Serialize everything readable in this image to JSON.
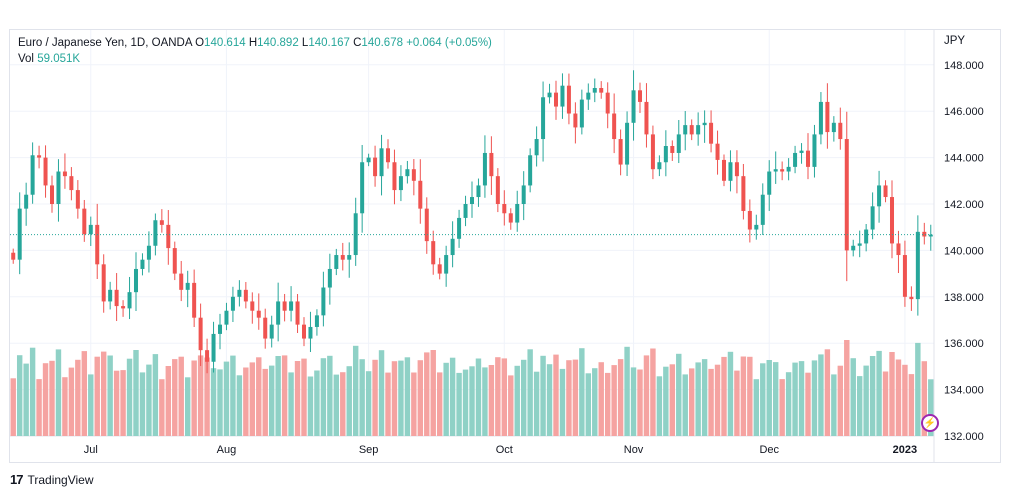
{
  "legend": {
    "symbol": "Euro / Japanese Yen, 1D, OANDA",
    "o_label": "O",
    "o_value": "140.614",
    "h_label": "H",
    "h_value": "140.892",
    "l_label": "L",
    "l_value": "140.167",
    "c_label": "C",
    "c_value": "140.678",
    "change": "+0.064 (+0.05%)",
    "vol_label": "Vol",
    "vol_value": "59.051K"
  },
  "currency": "JPY",
  "brand": {
    "logo": "17",
    "name": "TradingView"
  },
  "colors": {
    "up": "#26a69a",
    "down": "#ef5350",
    "up_vol": "#8fd1c6",
    "down_vol": "#f5a3a1",
    "grid": "#f0f3fa",
    "last_price": "#26a69a"
  },
  "chart_data": {
    "type": "candlestick",
    "title": "Euro / Japanese Yen, 1D, OANDA",
    "ylim": [
      132,
      149.5
    ],
    "yticks": [
      "132.000",
      "134.000",
      "136.000",
      "138.000",
      "140.000",
      "142.000",
      "144.000",
      "146.000",
      "148.000"
    ],
    "x_labels": [
      {
        "label": "Jul",
        "index": 12
      },
      {
        "label": "Aug",
        "index": 33
      },
      {
        "label": "Sep",
        "index": 55
      },
      {
        "label": "Oct",
        "index": 76
      },
      {
        "label": "Nov",
        "index": 96
      },
      {
        "label": "Dec",
        "index": 117
      },
      {
        "label": "2023",
        "index": 138
      }
    ],
    "last_price": 140.678,
    "grid": true,
    "closes": [
      139.6,
      141.8,
      142.4,
      144.1,
      144.0,
      142.8,
      142.0,
      143.4,
      143.2,
      142.6,
      141.8,
      140.7,
      141.1,
      139.4,
      137.8,
      138.3,
      137.6,
      137.5,
      138.2,
      139.2,
      139.6,
      140.2,
      141.3,
      141.1,
      140.1,
      139.0,
      138.3,
      138.6,
      137.1,
      135.7,
      135.2,
      136.4,
      136.8,
      137.4,
      138.0,
      138.3,
      137.8,
      137.4,
      137.1,
      136.2,
      136.8,
      137.8,
      137.4,
      137.8,
      136.8,
      136.2,
      136.7,
      137.2,
      138.4,
      139.2,
      139.8,
      139.6,
      139.8,
      141.6,
      143.8,
      144.0,
      143.2,
      144.4,
      143.8,
      142.6,
      143.2,
      143.5,
      143.0,
      141.8,
      140.4,
      139.4,
      139.0,
      139.8,
      140.5,
      141.4,
      142.0,
      142.3,
      142.8,
      144.2,
      143.2,
      142.0,
      141.6,
      141.2,
      142.0,
      142.8,
      144.1,
      144.8,
      146.6,
      146.8,
      146.2,
      147.1,
      145.9,
      145.3,
      146.5,
      146.8,
      147.0,
      146.8,
      145.9,
      144.8,
      143.7,
      145.5,
      146.9,
      146.4,
      145.0,
      143.5,
      143.8,
      144.5,
      144.2,
      145.0,
      145.4,
      145.0,
      145.4,
      145.5,
      144.6,
      143.9,
      143.0,
      143.8,
      143.2,
      141.7,
      140.9,
      141.1,
      142.4,
      143.4,
      143.5,
      143.4,
      143.6,
      144.2,
      144.3,
      143.6,
      145.0,
      146.4,
      145.1,
      145.5,
      144.8,
      140.0,
      140.2,
      140.3,
      140.9,
      141.9,
      142.8,
      142.3,
      140.3,
      139.8,
      138.0,
      137.9,
      140.8,
      140.6,
      140.678
    ]
  }
}
